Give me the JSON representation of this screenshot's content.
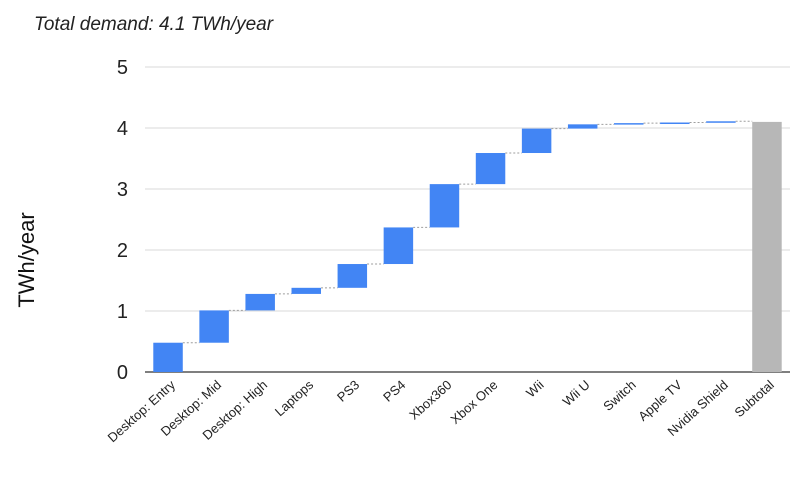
{
  "chart_data": {
    "type": "waterfall",
    "title": "Total demand: 4.1 TWh/year",
    "ylabel": "TWh/year",
    "xlabel": "",
    "ylim": [
      0,
      5
    ],
    "yticks": [
      0,
      1,
      2,
      3,
      4,
      5
    ],
    "grid": true,
    "legend": "none",
    "categories": [
      "Desktop: Entry",
      "Desktop: Mid",
      "Desktop: High",
      "Laptops",
      "PS3",
      "PS4",
      "Xbox360",
      "Xbox One",
      "Wii",
      "Wii U",
      "Switch",
      "Apple TV",
      "Nvidia Shield",
      "Subtotal"
    ],
    "values": [
      0.48,
      0.53,
      0.27,
      0.1,
      0.39,
      0.6,
      0.71,
      0.51,
      0.4,
      0.07,
      0.02,
      0.01,
      0.02,
      4.1
    ],
    "bar_kind": [
      "step",
      "step",
      "step",
      "step",
      "step",
      "step",
      "step",
      "step",
      "step",
      "step",
      "step",
      "step",
      "step",
      "total"
    ],
    "colors": {
      "increase": "#4285f4",
      "total": "#b7b7b7",
      "grid": "#d9d9d9",
      "connector": "#9e9e9e"
    }
  }
}
